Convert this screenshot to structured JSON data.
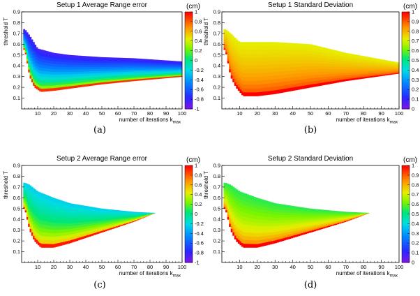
{
  "chart_data": [
    {
      "id": "a",
      "type": "heatmap",
      "title": "Setup 1 Average Range error",
      "caption": "(a)",
      "xlabel": "number of iterations k",
      "xlabel_sub": "max",
      "ylabel": "threshold T",
      "xlim": [
        0,
        100
      ],
      "ylim": [
        0,
        0.9
      ],
      "xticks": [
        "10",
        "20",
        "30",
        "40",
        "50",
        "60",
        "70",
        "80",
        "90",
        "100"
      ],
      "yticks": [
        "0.1",
        "0.2",
        "0.3",
        "0.4",
        "0.5",
        "0.6",
        "0.7",
        "0.8",
        "0.9"
      ],
      "colorbar": {
        "unit": "(cm)",
        "range": [
          -1,
          1
        ],
        "ticks": [
          "1",
          "0.8",
          "0.6",
          "0.4",
          "0.2",
          "0",
          "-0.2",
          "-0.4",
          "-0.6",
          "-0.8",
          "-1"
        ],
        "tick_values": [
          1,
          0.8,
          0.6,
          0.4,
          0.2,
          0,
          -0.2,
          -0.4,
          -0.6,
          -0.8,
          -1
        ],
        "colormap": "rainbow-bipolar"
      },
      "region": {
        "x_end": 100,
        "upper_boundary": [
          [
            2,
            0.74
          ],
          [
            5,
            0.68
          ],
          [
            10,
            0.56
          ],
          [
            20,
            0.52
          ],
          [
            30,
            0.5
          ],
          [
            50,
            0.48
          ],
          [
            70,
            0.47
          ],
          [
            100,
            0.44
          ]
        ],
        "lower_boundary": [
          [
            2,
            0.55
          ],
          [
            5,
            0.3
          ],
          [
            8,
            0.2
          ],
          [
            12,
            0.16
          ],
          [
            20,
            0.17
          ],
          [
            30,
            0.19
          ],
          [
            50,
            0.23
          ],
          [
            70,
            0.26
          ],
          [
            100,
            0.3
          ]
        ],
        "value_upper": -0.85,
        "value_lower": 0.9
      }
    },
    {
      "id": "b",
      "type": "heatmap",
      "title": "Setup 1 Standard Deviation",
      "caption": "(b)",
      "xlabel": "number of iterations k",
      "xlabel_sub": "max",
      "ylabel": "threshold T",
      "xlim": [
        0,
        100
      ],
      "ylim": [
        0,
        0.9
      ],
      "xticks": [
        "10",
        "20",
        "30",
        "40",
        "50",
        "60",
        "70",
        "80",
        "90",
        "100"
      ],
      "yticks": [
        "0.1",
        "0.2",
        "0.3",
        "0.4",
        "0.5",
        "0.6",
        "0.7",
        "0.8",
        "0.9"
      ],
      "colorbar": {
        "unit": "(cm)",
        "range": [
          0,
          1
        ],
        "ticks": [
          "1",
          "0.9",
          "0.8",
          "0.7",
          "0.6",
          "0.5",
          "0.4",
          "0.3",
          "0.2",
          "0.1",
          "0"
        ],
        "tick_values": [
          1,
          0.9,
          0.8,
          0.7,
          0.6,
          0.5,
          0.4,
          0.3,
          0.2,
          0.1,
          0
        ],
        "colormap": "rainbow"
      },
      "region": {
        "x_end": 100,
        "upper_boundary": [
          [
            2,
            0.74
          ],
          [
            5,
            0.7
          ],
          [
            10,
            0.62
          ],
          [
            20,
            0.62
          ],
          [
            30,
            0.62
          ],
          [
            50,
            0.6
          ],
          [
            70,
            0.52
          ],
          [
            100,
            0.43
          ]
        ],
        "lower_boundary": [
          [
            2,
            0.55
          ],
          [
            5,
            0.3
          ],
          [
            8,
            0.2
          ],
          [
            12,
            0.12
          ],
          [
            20,
            0.12
          ],
          [
            30,
            0.14
          ],
          [
            50,
            0.2
          ],
          [
            70,
            0.26
          ],
          [
            100,
            0.33
          ]
        ],
        "value_upper": 0.72,
        "value_lower": 1.0
      }
    },
    {
      "id": "c",
      "type": "heatmap",
      "title": "Setup 2 Average Range error",
      "caption": "(c)",
      "xlabel": "number of iterations k",
      "xlabel_sub": "max",
      "ylabel": "threshold T",
      "xlim": [
        0,
        100
      ],
      "ylim": [
        0,
        0.9
      ],
      "xticks": [
        "10",
        "20",
        "30",
        "40",
        "50",
        "60",
        "70",
        "80",
        "90",
        "100"
      ],
      "yticks": [
        "0.1",
        "0.2",
        "0.3",
        "0.4",
        "0.5",
        "0.6",
        "0.7",
        "0.8",
        "0.9"
      ],
      "colorbar": {
        "unit": "(cm)",
        "range": [
          -1,
          1
        ],
        "ticks": [
          "1",
          "0.8",
          "0.6",
          "0.4",
          "0.2",
          "0",
          "-0.2",
          "-0.4",
          "-0.6",
          "-0.8",
          "-1"
        ],
        "tick_values": [
          1,
          0.8,
          0.6,
          0.4,
          0.2,
          0,
          -0.2,
          -0.4,
          -0.6,
          -0.8,
          -1
        ],
        "colormap": "rainbow-bipolar"
      },
      "region": {
        "x_end": 83,
        "upper_boundary": [
          [
            2,
            0.74
          ],
          [
            5,
            0.72
          ],
          [
            10,
            0.66
          ],
          [
            20,
            0.6
          ],
          [
            30,
            0.55
          ],
          [
            50,
            0.5
          ],
          [
            70,
            0.47
          ],
          [
            83,
            0.46
          ]
        ],
        "lower_boundary": [
          [
            2,
            0.5
          ],
          [
            5,
            0.3
          ],
          [
            8,
            0.2
          ],
          [
            12,
            0.14
          ],
          [
            20,
            0.14
          ],
          [
            30,
            0.18
          ],
          [
            50,
            0.28
          ],
          [
            70,
            0.38
          ],
          [
            83,
            0.46
          ]
        ],
        "value_upper": -0.25,
        "value_lower": 0.95
      }
    },
    {
      "id": "d",
      "type": "heatmap",
      "title": "Setup 2 Standard Deviation",
      "caption": "(d)",
      "xlabel": "number of iterations k",
      "xlabel_sub": "max",
      "ylabel": "threshold T",
      "xlim": [
        0,
        100
      ],
      "ylim": [
        0,
        0.9
      ],
      "xticks": [
        "10",
        "20",
        "30",
        "40",
        "50",
        "60",
        "70",
        "80",
        "90",
        "100"
      ],
      "yticks": [
        "0.1",
        "0.2",
        "0.3",
        "0.4",
        "0.5",
        "0.6",
        "0.7",
        "0.8",
        "0.9"
      ],
      "colorbar": {
        "unit": "(cm)",
        "range": [
          0,
          1
        ],
        "ticks": [
          "1",
          "0.9",
          "0.8",
          "0.7",
          "0.6",
          "0.5",
          "0.4",
          "0.3",
          "0.2",
          "0.1",
          "0"
        ],
        "tick_values": [
          1,
          0.9,
          0.8,
          0.7,
          0.6,
          0.5,
          0.4,
          0.3,
          0.2,
          0.1,
          0
        ],
        "colormap": "rainbow"
      },
      "region": {
        "x_end": 83,
        "upper_boundary": [
          [
            2,
            0.74
          ],
          [
            5,
            0.72
          ],
          [
            10,
            0.66
          ],
          [
            20,
            0.6
          ],
          [
            30,
            0.55
          ],
          [
            50,
            0.5
          ],
          [
            70,
            0.47
          ],
          [
            83,
            0.46
          ]
        ],
        "lower_boundary": [
          [
            2,
            0.5
          ],
          [
            5,
            0.3
          ],
          [
            8,
            0.2
          ],
          [
            12,
            0.14
          ],
          [
            20,
            0.14
          ],
          [
            30,
            0.18
          ],
          [
            50,
            0.28
          ],
          [
            70,
            0.38
          ],
          [
            83,
            0.46
          ]
        ],
        "value_upper": 0.55,
        "value_lower": 1.0
      }
    }
  ]
}
